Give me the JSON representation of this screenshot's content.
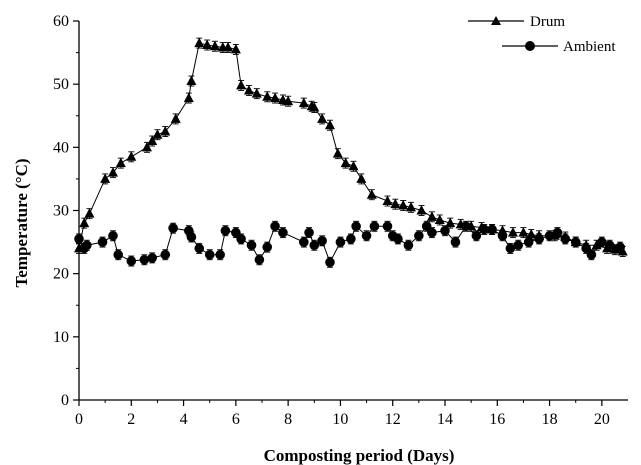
{
  "chart_data": {
    "type": "line",
    "xlabel": "Composting period (Days)",
    "ylabel": "Temperature (°C)",
    "xlim": [
      0,
      21
    ],
    "ylim": [
      0,
      60
    ],
    "xticks": [
      0,
      2,
      4,
      6,
      8,
      10,
      12,
      14,
      16,
      18,
      20
    ],
    "yticks": [
      0,
      10,
      20,
      30,
      40,
      50,
      60
    ],
    "legend_position": "top-right",
    "grid": false,
    "series": [
      {
        "name": "Drum",
        "marker": "triangle",
        "points": [
          [
            0.0,
            24.0
          ],
          [
            0.2,
            28.0
          ],
          [
            0.4,
            29.5
          ],
          [
            1.0,
            35.0
          ],
          [
            1.3,
            36.0
          ],
          [
            1.6,
            37.5
          ],
          [
            2.0,
            38.5
          ],
          [
            2.6,
            40.0
          ],
          [
            2.8,
            41.0
          ],
          [
            3.0,
            42.0
          ],
          [
            3.3,
            42.5
          ],
          [
            3.7,
            44.5
          ],
          [
            4.2,
            47.8
          ],
          [
            4.3,
            50.5
          ],
          [
            4.6,
            56.5
          ],
          [
            4.9,
            56.2
          ],
          [
            5.2,
            56.0
          ],
          [
            5.5,
            55.8
          ],
          [
            5.7,
            55.8
          ],
          [
            6.0,
            55.5
          ],
          [
            6.2,
            49.8
          ],
          [
            6.5,
            49.0
          ],
          [
            6.8,
            48.5
          ],
          [
            7.2,
            48.0
          ],
          [
            7.5,
            47.8
          ],
          [
            7.8,
            47.5
          ],
          [
            8.0,
            47.3
          ],
          [
            8.6,
            47.0
          ],
          [
            8.9,
            46.5
          ],
          [
            9.0,
            46.3
          ],
          [
            9.3,
            44.5
          ],
          [
            9.6,
            43.5
          ],
          [
            9.9,
            39.0
          ],
          [
            10.2,
            37.5
          ],
          [
            10.5,
            37.0
          ],
          [
            10.8,
            35.0
          ],
          [
            11.2,
            32.5
          ],
          [
            11.8,
            31.5
          ],
          [
            12.1,
            31.0
          ],
          [
            12.4,
            30.8
          ],
          [
            12.7,
            30.5
          ],
          [
            13.1,
            30.0
          ],
          [
            13.5,
            29.0
          ],
          [
            13.8,
            28.5
          ],
          [
            14.2,
            28.0
          ],
          [
            14.6,
            27.8
          ],
          [
            15.0,
            27.5
          ],
          [
            15.4,
            27.3
          ],
          [
            15.8,
            27.0
          ],
          [
            16.2,
            26.8
          ],
          [
            16.6,
            26.5
          ],
          [
            17.0,
            26.5
          ],
          [
            17.3,
            26.2
          ],
          [
            17.6,
            26.0
          ],
          [
            18.2,
            26.0
          ],
          [
            18.6,
            25.8
          ],
          [
            19.0,
            25.0
          ],
          [
            19.4,
            24.5
          ],
          [
            19.8,
            24.5
          ],
          [
            20.2,
            24.0
          ],
          [
            20.5,
            23.8
          ],
          [
            20.8,
            23.5
          ]
        ]
      },
      {
        "name": "Ambient",
        "marker": "circle",
        "points": [
          [
            0.0,
            25.5
          ],
          [
            0.2,
            24.0
          ],
          [
            0.3,
            24.5
          ],
          [
            0.9,
            25.0
          ],
          [
            1.3,
            26.0
          ],
          [
            1.5,
            23.0
          ],
          [
            2.0,
            22.0
          ],
          [
            2.5,
            22.2
          ],
          [
            2.8,
            22.5
          ],
          [
            3.3,
            23.0
          ],
          [
            3.6,
            27.2
          ],
          [
            4.2,
            26.8
          ],
          [
            4.3,
            25.8
          ],
          [
            4.6,
            24.0
          ],
          [
            5.0,
            23.0
          ],
          [
            5.4,
            23.0
          ],
          [
            5.6,
            26.8
          ],
          [
            6.0,
            26.5
          ],
          [
            6.2,
            25.5
          ],
          [
            6.6,
            24.5
          ],
          [
            6.9,
            22.2
          ],
          [
            7.2,
            24.2
          ],
          [
            7.5,
            27.5
          ],
          [
            7.8,
            26.5
          ],
          [
            8.6,
            25.0
          ],
          [
            8.8,
            26.5
          ],
          [
            9.0,
            24.5
          ],
          [
            9.3,
            25.2
          ],
          [
            9.6,
            21.8
          ],
          [
            10.0,
            25.0
          ],
          [
            10.4,
            25.5
          ],
          [
            10.6,
            27.5
          ],
          [
            11.0,
            26.0
          ],
          [
            11.3,
            27.5
          ],
          [
            11.8,
            27.5
          ],
          [
            12.0,
            26.0
          ],
          [
            12.2,
            25.5
          ],
          [
            12.6,
            24.5
          ],
          [
            13.0,
            26.0
          ],
          [
            13.3,
            27.5
          ],
          [
            13.5,
            26.5
          ],
          [
            14.0,
            26.8
          ],
          [
            14.4,
            25.0
          ],
          [
            14.8,
            27.5
          ],
          [
            15.2,
            26.0
          ],
          [
            15.5,
            27.0
          ],
          [
            15.8,
            27.0
          ],
          [
            16.2,
            26.0
          ],
          [
            16.5,
            24.0
          ],
          [
            16.8,
            24.5
          ],
          [
            17.2,
            25.0
          ],
          [
            17.6,
            25.5
          ],
          [
            18.0,
            26.0
          ],
          [
            18.3,
            26.5
          ],
          [
            18.6,
            25.5
          ],
          [
            19.0,
            25.0
          ],
          [
            19.4,
            24.0
          ],
          [
            19.6,
            23.0
          ],
          [
            20.0,
            25.0
          ],
          [
            20.3,
            24.5
          ],
          [
            20.7,
            24.2
          ]
        ]
      }
    ]
  }
}
